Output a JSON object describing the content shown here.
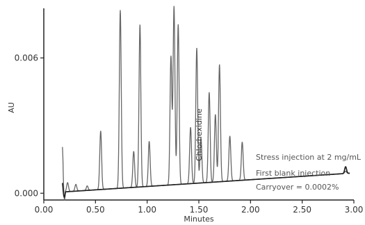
{
  "chart_data": {
    "type": "line",
    "title": "",
    "xlabel": "Minutes",
    "ylabel": "AU",
    "xlim": [
      0.0,
      3.0
    ],
    "ylim": [
      -0.0003,
      0.0082
    ],
    "x_ticks": [
      0.0,
      0.5,
      1.0,
      1.5,
      2.0,
      2.5,
      3.0
    ],
    "x_tick_labels": [
      "0.00",
      "0.50",
      "1.00",
      "1.50",
      "2.00",
      "2.50",
      "3.00"
    ],
    "y_ticks": [
      0.0,
      0.006
    ],
    "y_tick_labels": [
      "0.000",
      "0.006"
    ],
    "grid": false,
    "series": [
      {
        "role": "stress injection",
        "color": "#666666",
        "baseline_slope": 0.0003,
        "peaks": [
          {
            "x": 0.18,
            "y": 0.002
          },
          {
            "x": 0.23,
            "y": 0.0004
          },
          {
            "x": 0.31,
            "y": 0.0003
          },
          {
            "x": 0.42,
            "y": 0.0002
          },
          {
            "x": 0.55,
            "y": 0.0026
          },
          {
            "x": 0.74,
            "y": 0.0079
          },
          {
            "x": 0.87,
            "y": 0.0016
          },
          {
            "x": 0.93,
            "y": 0.0072
          },
          {
            "x": 1.02,
            "y": 0.002
          },
          {
            "x": 1.23,
            "y": 0.0057
          },
          {
            "x": 1.26,
            "y": 0.0079
          },
          {
            "x": 1.3,
            "y": 0.0071
          },
          {
            "x": 1.42,
            "y": 0.0025
          },
          {
            "x": 1.48,
            "y": 0.006
          },
          {
            "x": 1.52,
            "y": 0.002
          },
          {
            "x": 1.6,
            "y": 0.004
          },
          {
            "x": 1.66,
            "y": 0.003
          },
          {
            "x": 1.7,
            "y": 0.0052
          },
          {
            "x": 1.8,
            "y": 0.002
          },
          {
            "x": 1.92,
            "y": 0.0017
          },
          {
            "x": 2.92,
            "y": 0.0001
          }
        ]
      },
      {
        "role": "first blank injection",
        "color": "#222222",
        "baseline_slope": 0.0003,
        "peaks": [
          {
            "x": 0.18,
            "y": 0.0004
          },
          {
            "x": 1.26,
            "y": 2e-06
          },
          {
            "x": 2.92,
            "y": 0.0003
          }
        ]
      }
    ],
    "annotations": {
      "peak_label": "Chlorhexidine",
      "lines": [
        "Stress injection at 2 mg/mL",
        "First blank injection",
        "Carryover = 0.0002%"
      ]
    }
  }
}
